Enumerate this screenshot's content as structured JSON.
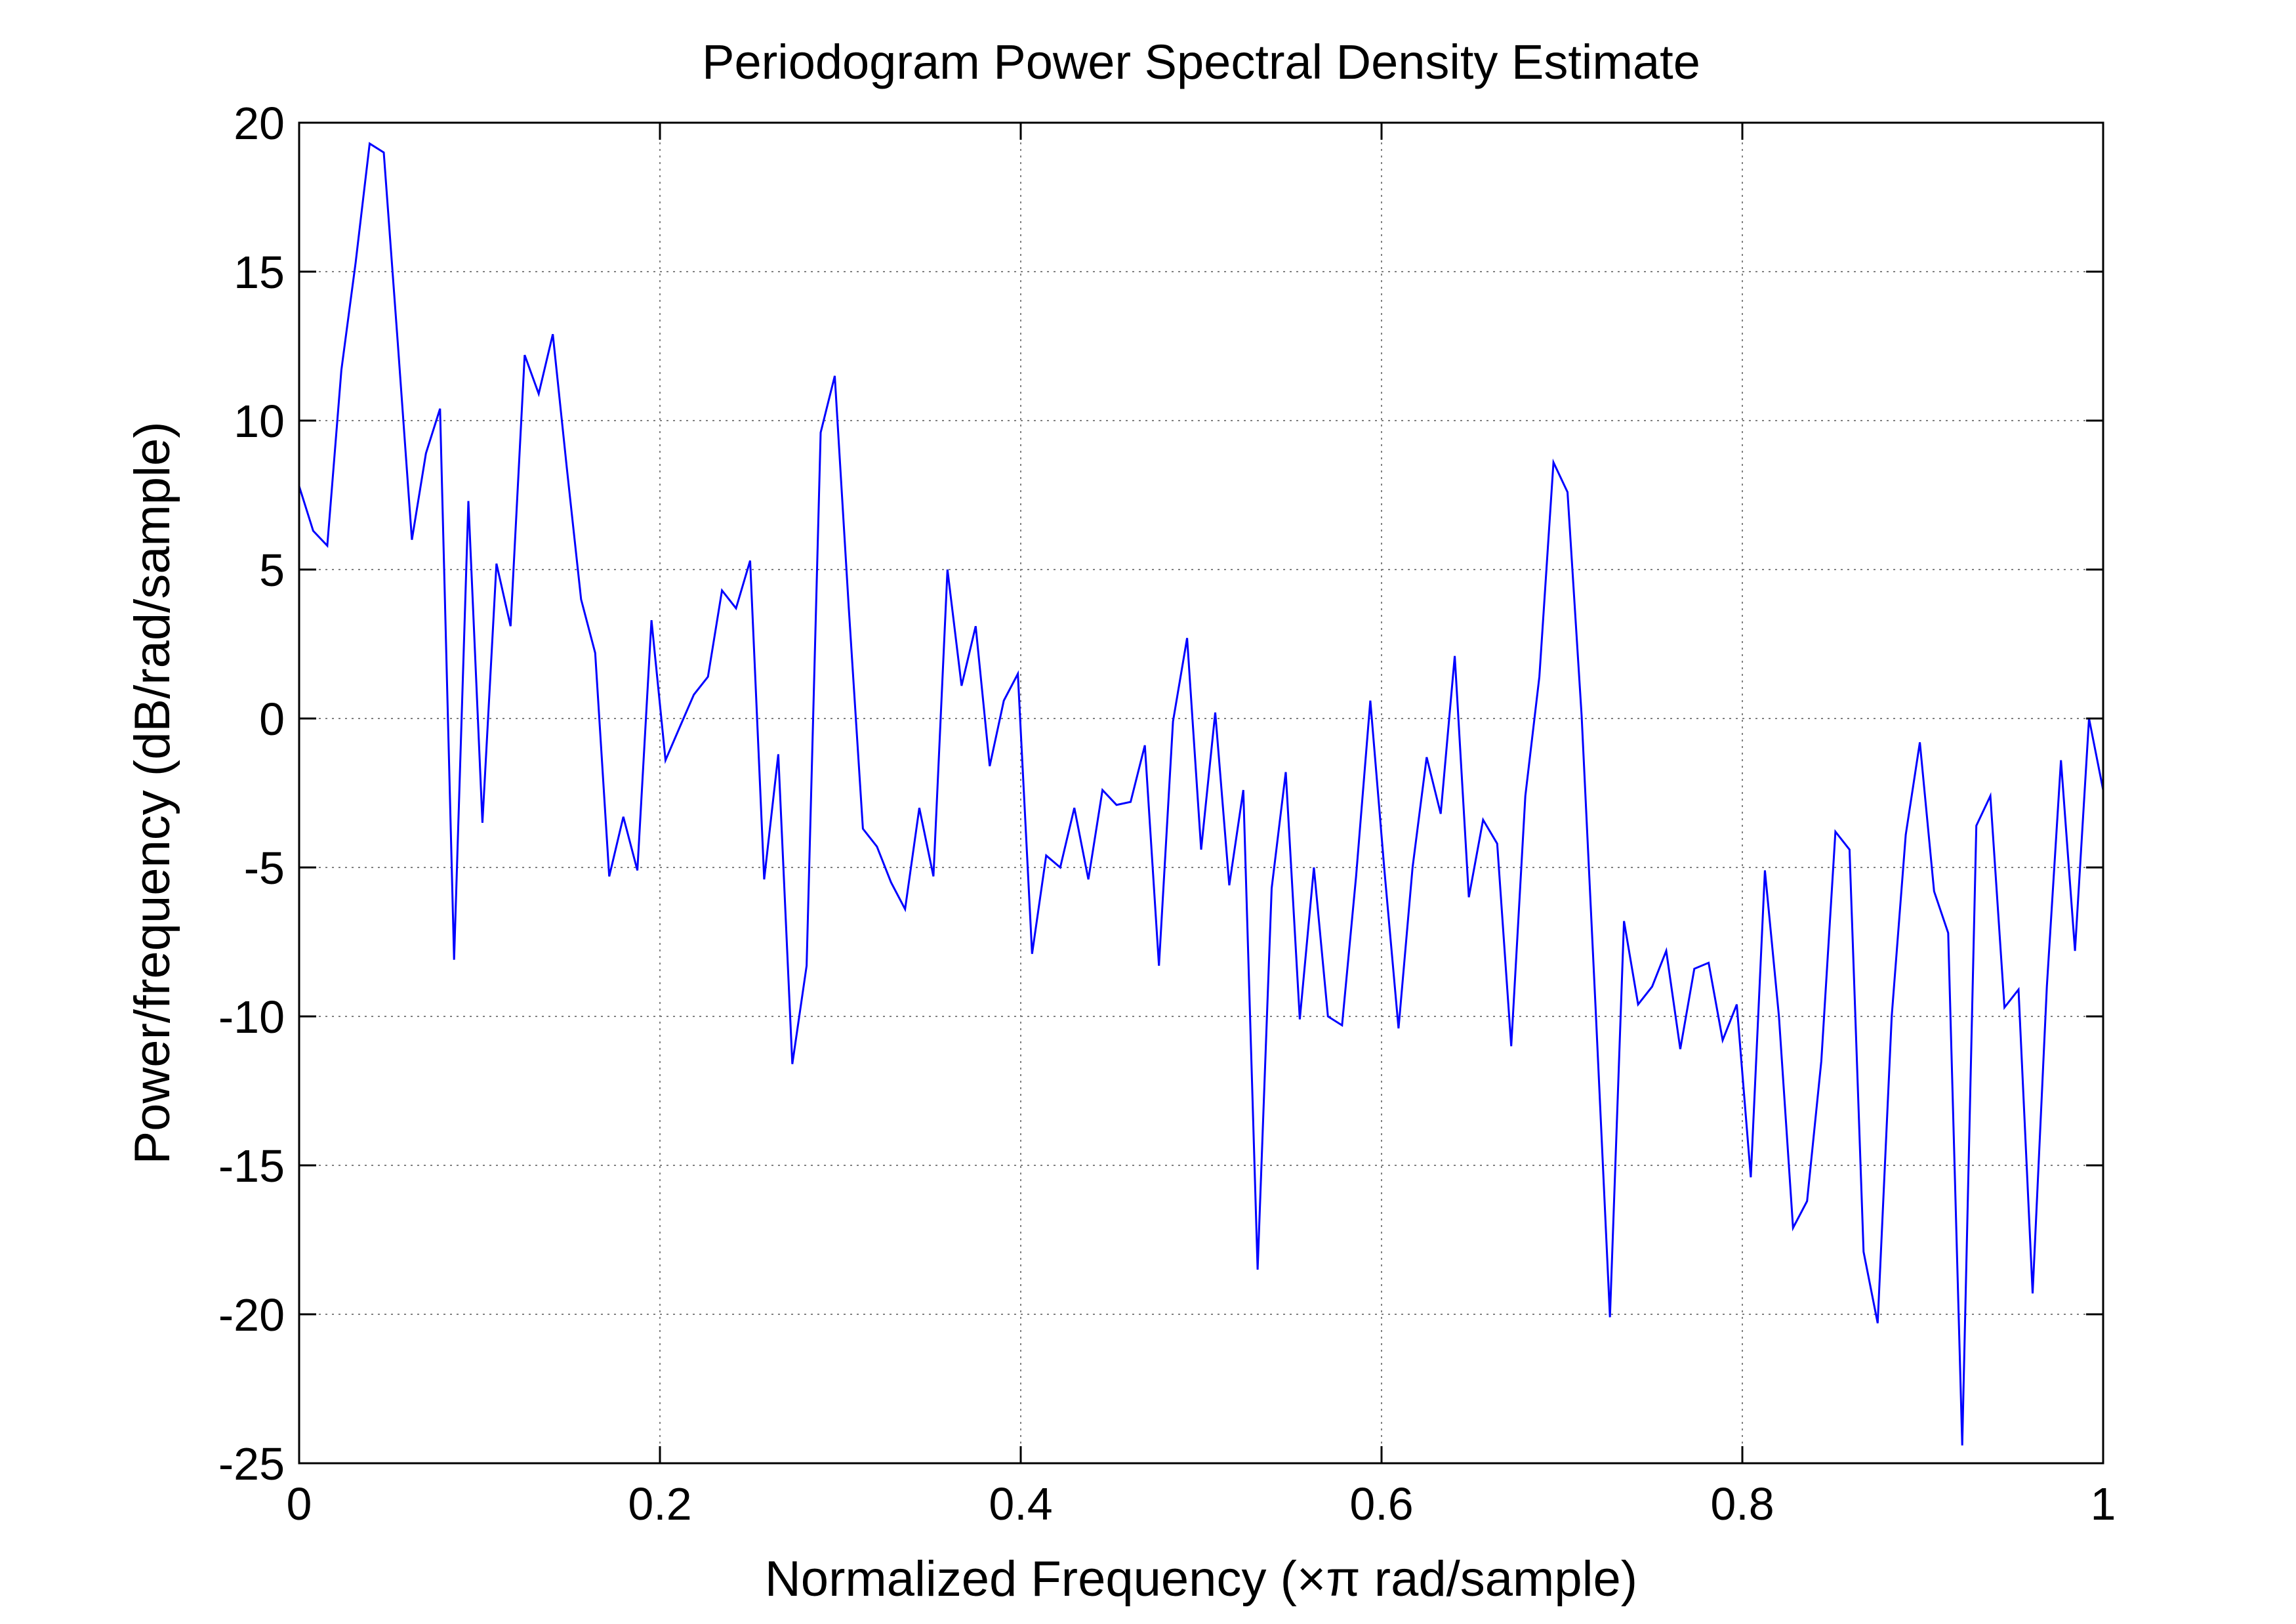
{
  "chart_data": {
    "type": "line",
    "title": "Periodogram Power Spectral Density Estimate",
    "xlabel": "Normalized Frequency  (×π rad/sample)",
    "ylabel": "Power/frequency (dB/rad/sample)",
    "xlim": [
      0,
      1
    ],
    "ylim": [
      -25,
      20
    ],
    "xticks": [
      0,
      0.2,
      0.4,
      0.6,
      0.8,
      1
    ],
    "xtick_labels": [
      "0",
      "0.2",
      "0.4",
      "0.6",
      "0.8",
      "1"
    ],
    "yticks": [
      20,
      15,
      10,
      5,
      0,
      -5,
      -10,
      -15,
      -20,
      -25
    ],
    "ytick_labels": [
      "20",
      "15",
      "10",
      "5",
      "0",
      "-5",
      "-10",
      "-15",
      "-20",
      "-25"
    ],
    "grid": true,
    "line_color": "#0000ff",
    "series": [
      {
        "x": [
          0.0,
          0.0078,
          0.0156,
          0.0234,
          0.0313,
          0.0391,
          0.0469,
          0.0547,
          0.0625,
          0.0703,
          0.0781,
          0.0859,
          0.0938,
          0.1016,
          0.1094,
          0.1172,
          0.125,
          0.1328,
          0.1406,
          0.1484,
          0.1563,
          0.1641,
          0.1719,
          0.1797,
          0.1875,
          0.1953,
          0.2031,
          0.2109,
          0.2188,
          0.2266,
          0.2344,
          0.2422,
          0.25,
          0.2578,
          0.2656,
          0.2734,
          0.2813,
          0.2891,
          0.2969,
          0.3047,
          0.3125,
          0.3203,
          0.3281,
          0.3359,
          0.3438,
          0.3516,
          0.3594,
          0.3672,
          0.375,
          0.3828,
          0.3906,
          0.3984,
          0.4063,
          0.4141,
          0.4219,
          0.4297,
          0.4375,
          0.4453,
          0.4531,
          0.4609,
          0.4688,
          0.4766,
          0.4844,
          0.4922,
          0.5,
          0.5078,
          0.5156,
          0.5234,
          0.5313,
          0.5391,
          0.5469,
          0.5547,
          0.5625,
          0.5703,
          0.5781,
          0.5859,
          0.5938,
          0.6016,
          0.6094,
          0.6172,
          0.625,
          0.6328,
          0.6406,
          0.6484,
          0.6563,
          0.6641,
          0.6719,
          0.6797,
          0.6875,
          0.6953,
          0.7031,
          0.7109,
          0.7188,
          0.7266,
          0.7344,
          0.7422,
          0.75,
          0.7578,
          0.7656,
          0.7734,
          0.7813,
          0.7891,
          0.7969,
          0.8047,
          0.8125,
          0.8203,
          0.8281,
          0.8359,
          0.8438,
          0.8516,
          0.8594,
          0.8672,
          0.875,
          0.8828,
          0.8906,
          0.8984,
          0.9063,
          0.9141,
          0.9219,
          0.9297,
          0.9375,
          0.9453,
          0.9531,
          0.9609,
          0.9688,
          0.9766,
          0.9844,
          0.9922,
          1.0
        ],
        "values": [
          7.8,
          6.3,
          5.8,
          11.7,
          15.3,
          19.3,
          19.0,
          12.6,
          6.0,
          8.9,
          10.4,
          -8.1,
          7.3,
          -3.5,
          5.2,
          3.1,
          12.2,
          10.9,
          12.9,
          8.4,
          4.0,
          2.2,
          -5.3,
          -3.3,
          -5.1,
          3.3,
          -1.4,
          -0.3,
          0.8,
          1.4,
          4.3,
          3.7,
          5.3,
          -5.4,
          -1.2,
          -11.6,
          -8.3,
          9.6,
          11.5,
          3.7,
          -3.7,
          -4.3,
          -5.5,
          -6.4,
          -3.0,
          -5.3,
          5.0,
          1.1,
          3.1,
          -1.6,
          0.6,
          1.5,
          -7.9,
          -4.6,
          -5.0,
          -3.0,
          -5.4,
          -2.4,
          -2.9,
          -2.8,
          -0.9,
          -8.3,
          -0.1,
          2.7,
          -4.4,
          0.2,
          -5.6,
          -2.4,
          -18.5,
          -5.7,
          -1.8,
          -10.1,
          -5.0,
          -10.0,
          -10.3,
          -5.3,
          0.6,
          -5.1,
          -10.4,
          -5.0,
          -1.3,
          -3.2,
          2.1,
          -6.0,
          -3.4,
          -4.2,
          -11.0,
          -2.6,
          1.4,
          8.6,
          7.6,
          0.1,
          -9.9,
          -20.1,
          -6.8,
          -9.6,
          -9.0,
          -7.8,
          -11.1,
          -8.4,
          -8.2,
          -10.8,
          -9.6,
          -15.4,
          -5.1,
          -10.0,
          -17.1,
          -16.2,
          -11.5,
          -3.8,
          -4.4,
          -17.9,
          -20.3,
          -10.0,
          -3.9,
          -0.8,
          -5.8,
          -7.2,
          -24.4,
          -3.6,
          -2.6,
          -9.7,
          -9.1,
          -19.3,
          -9.0,
          -1.4,
          -7.8,
          0.0,
          -2.4
        ]
      }
    ]
  }
}
